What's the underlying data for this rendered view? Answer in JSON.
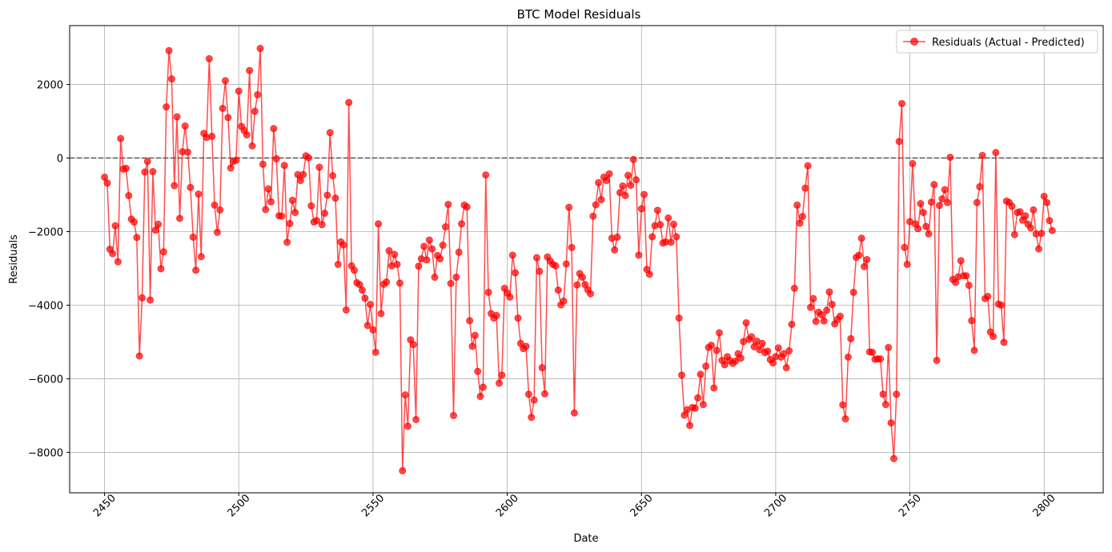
{
  "chart_data": {
    "type": "line",
    "title": "BTC Model Residuals",
    "xlabel": "Date",
    "ylabel": "Residuals",
    "xlim": [
      2437,
      2822
    ],
    "ylim": [
      -9100,
      3600
    ],
    "xticks": [
      2450,
      2500,
      2550,
      2600,
      2650,
      2700,
      2750,
      2800
    ],
    "yticks": [
      -8000,
      -6000,
      -4000,
      -2000,
      0,
      2000
    ],
    "xtick_rotation": 45,
    "grid": true,
    "legend_position": "top-right",
    "reference_line": {
      "y": 0,
      "style": "dashed",
      "color": "#555555"
    },
    "series": [
      {
        "name": "Residuals (Actual - Predicted)",
        "color": "#ff0000",
        "marker": "circle",
        "x_start": 2450,
        "x_step": 1,
        "values": [
          -520,
          -680,
          -2480,
          -2600,
          -1840,
          -2820,
          530,
          -300,
          -280,
          -1020,
          -1660,
          -1740,
          -2160,
          -5380,
          -3800,
          -380,
          -90,
          -3860,
          -370,
          -1960,
          -1800,
          -3010,
          -2550,
          1390,
          2920,
          2150,
          -750,
          1120,
          -1640,
          170,
          870,
          160,
          -800,
          -2150,
          -3050,
          -980,
          -2680,
          670,
          560,
          2700,
          590,
          -1280,
          -2020,
          -1410,
          1350,
          2100,
          1100,
          -270,
          -90,
          -60,
          1820,
          860,
          750,
          630,
          2380,
          330,
          1270,
          1720,
          2980,
          -170,
          -1400,
          -840,
          -1190,
          800,
          -20,
          -1570,
          -1580,
          -200,
          -2290,
          -1780,
          -1150,
          -1480,
          -450,
          -610,
          -450,
          60,
          10,
          -1300,
          -1740,
          -1700,
          -250,
          -1810,
          -1500,
          -1010,
          690,
          -480,
          -1090,
          -2890,
          -2280,
          -2360,
          -4130,
          1510,
          -2930,
          -3050,
          -3390,
          -3440,
          -3590,
          -3810,
          -4550,
          -3980,
          -4670,
          -5280,
          -1790,
          -4230,
          -3430,
          -3370,
          -2520,
          -2930,
          -2620,
          -2890,
          -3400,
          -8500,
          -6440,
          -7290,
          -4940,
          -5070,
          -7110,
          -2940,
          -2740,
          -2400,
          -2770,
          -2230,
          -2470,
          -3240,
          -2650,
          -2740,
          -2370,
          -1870,
          -1260,
          -3410,
          -7000,
          -3240,
          -2560,
          -1790,
          -1280,
          -1330,
          -4420,
          -5120,
          -4820,
          -5800,
          -6480,
          -6230,
          -460,
          -3650,
          -4230,
          -4350,
          -4280,
          -6120,
          -5900,
          -3540,
          -3670,
          -3780,
          -2640,
          -3120,
          -4350,
          -5040,
          -5180,
          -5120,
          -6420,
          -7050,
          -6580,
          -2710,
          -3080,
          -5700,
          -6410,
          -2690,
          -2800,
          -2890,
          -2930,
          -3590,
          -3990,
          -3890,
          -2880,
          -1340,
          -2430,
          -6930,
          -3450,
          -3140,
          -3240,
          -3440,
          -3580,
          -3690,
          -1580,
          -1270,
          -670,
          -1130,
          -520,
          -610,
          -430,
          -2180,
          -2500,
          -2150,
          -940,
          -760,
          -1020,
          -470,
          -740,
          -40,
          -590,
          -2640,
          -1380,
          -990,
          -3030,
          -3160,
          -2140,
          -1840,
          -1420,
          -1810,
          -2310,
          -2280,
          -1630,
          -2290,
          -1800,
          -2140,
          -4350,
          -5900,
          -6990,
          -6840,
          -7270,
          -6780,
          -6800,
          -6520,
          -5880,
          -6700,
          -5660,
          -5150,
          -5090,
          -6250,
          -5230,
          -4750,
          -5500,
          -5620,
          -5400,
          -5510,
          -5580,
          -5520,
          -5320,
          -5440,
          -4990,
          -4480,
          -4930,
          -4860,
          -5130,
          -4980,
          -5210,
          -5040,
          -5290,
          -5250,
          -5480,
          -5570,
          -5400,
          -5160,
          -5410,
          -5320,
          -5700,
          -5240,
          -4520,
          -3540,
          -1280,
          -1770,
          -1590,
          -820,
          -210,
          -4060,
          -3820,
          -4440,
          -4190,
          -4260,
          -4430,
          -4140,
          -3640,
          -3980,
          -4510,
          -4390,
          -4300,
          -6710,
          -7090,
          -5410,
          -4910,
          -3650,
          -2700,
          -2640,
          -2180,
          -2950,
          -2760,
          -5270,
          -5280,
          -5470,
          -5460,
          -5460,
          -6420,
          -6700,
          -5150,
          -7200,
          -8170,
          -6420,
          450,
          1480,
          -2430,
          -2890,
          -1730,
          -150,
          -1790,
          -1920,
          -1240,
          -1480,
          -1860,
          -2060,
          -1200,
          -720,
          -5500,
          -1290,
          -1110,
          -860,
          -1210,
          20,
          -3300,
          -3380,
          -3230,
          -2790,
          -3200,
          -3200,
          -3460,
          -4420,
          -5230,
          -1210,
          -780,
          70,
          -3820,
          -3760,
          -4730,
          -4850,
          150,
          -3970,
          -4000,
          -5010,
          -1170,
          -1210,
          -1310,
          -2080,
          -1480,
          -1460,
          -1690,
          -1570,
          -1800,
          -1900,
          -1410,
          -2060,
          -2470,
          -2050,
          -1040,
          -1210,
          -1700,
          -1970
        ]
      }
    ]
  }
}
